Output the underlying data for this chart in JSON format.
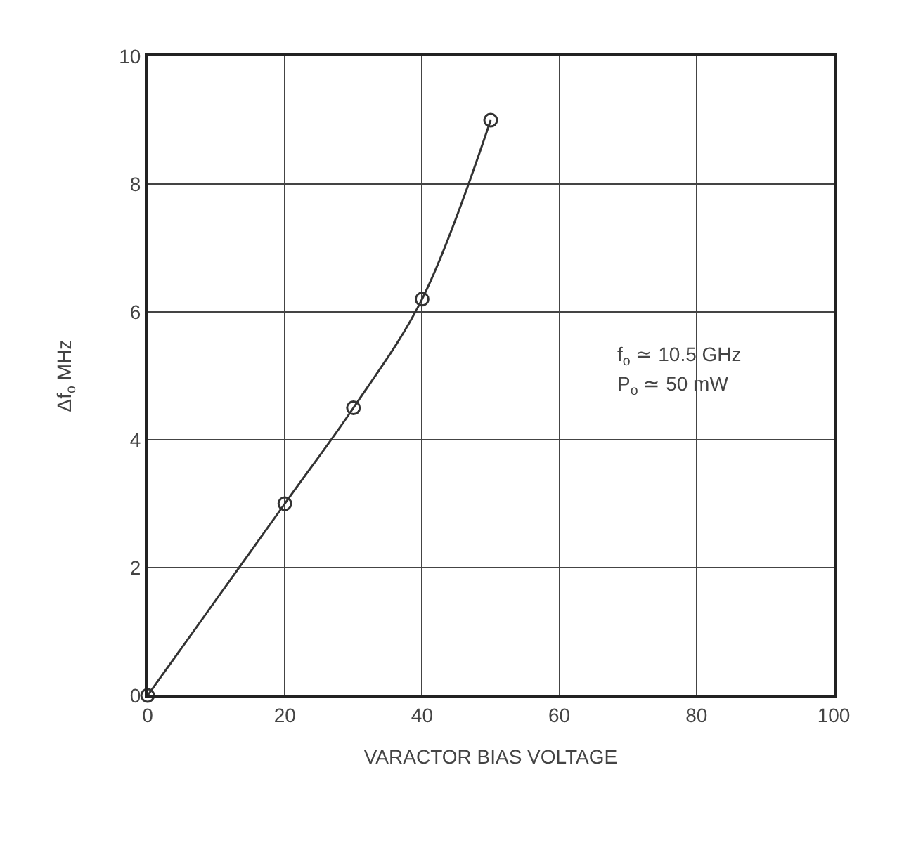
{
  "chart_data": {
    "type": "line",
    "xlabel": "VARACTOR BIAS VOLTAGE",
    "ylabel": "Δf$_{o}$ MHz",
    "x": [
      0,
      20,
      30,
      40,
      50
    ],
    "series": [
      {
        "color": "#333333",
        "values": [
          0,
          3.0,
          4.5,
          6.2,
          9.0
        ]
      }
    ],
    "xlim": [
      0,
      100
    ],
    "xticks": [
      0,
      20,
      40,
      60,
      80,
      100
    ],
    "ylim": [
      0,
      10
    ],
    "yticks": [
      0,
      2,
      4,
      6,
      8,
      10
    ],
    "grid": true,
    "marker": "circle",
    "line_style": "solid",
    "legend": false,
    "annotations": [
      "f$_{o}$ ≃ 10.5 GHz",
      "P$_{o}$ ≃ 50 mW"
    ]
  }
}
